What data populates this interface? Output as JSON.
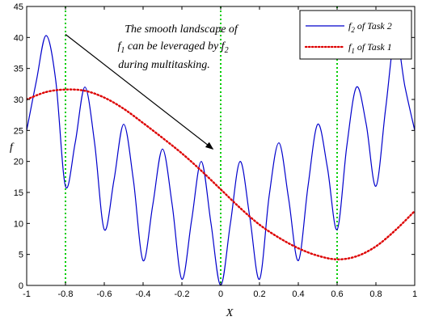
{
  "chart_data": {
    "type": "line",
    "title": "",
    "xlabel": "X",
    "ylabel": "f",
    "xlim": [
      -1,
      1
    ],
    "ylim": [
      0,
      45
    ],
    "xticks": [
      -1,
      -0.8,
      -0.6,
      -0.4,
      -0.2,
      0,
      0.2,
      0.4,
      0.6,
      0.8,
      1
    ],
    "xtick_labels": [
      "-1",
      "-0.8",
      "-0.6",
      "-0.4",
      "-0.2",
      "0",
      "0.2",
      "0.4",
      "0.6",
      "0.8",
      "1"
    ],
    "yticks": [
      0,
      5,
      10,
      15,
      20,
      25,
      30,
      35,
      40,
      45
    ],
    "ytick_labels": [
      "0",
      "5",
      "10",
      "15",
      "20",
      "25",
      "30",
      "35",
      "40",
      "45"
    ],
    "grid": false,
    "legend_position": "top-right",
    "series": [
      {
        "name_main": "f",
        "name_sub": "2",
        "name_rest": " of Task 2",
        "color": "#0000cc",
        "style": "solid",
        "x": [
          -1,
          -0.95,
          -0.9,
          -0.85,
          -0.8,
          -0.75,
          -0.7,
          -0.65,
          -0.6,
          -0.55,
          -0.5,
          -0.45,
          -0.4,
          -0.35,
          -0.3,
          -0.25,
          -0.2,
          -0.15,
          -0.1,
          -0.05,
          0,
          0.05,
          0.1,
          0.15,
          0.2,
          0.25,
          0.3,
          0.35,
          0.4,
          0.45,
          0.5,
          0.55,
          0.6,
          0.65,
          0.7,
          0.75,
          0.8,
          0.85,
          0.9,
          0.95,
          1
        ],
        "y": [
          25,
          33,
          40.3,
          33,
          16,
          23,
          32,
          23,
          9,
          17,
          26,
          17,
          4,
          13,
          22,
          13,
          1,
          10.5,
          20,
          10,
          0,
          10,
          20,
          11,
          1,
          14.5,
          23,
          14,
          4,
          16,
          26,
          19,
          9,
          22.5,
          32,
          26,
          16,
          28.5,
          40.3,
          32,
          25
        ]
      },
      {
        "name_main": "f",
        "name_sub": "1",
        "name_rest": " of Task 1",
        "color": "#dd0000",
        "style": "dotted",
        "x": [
          -1,
          -0.9,
          -0.8,
          -0.7,
          -0.6,
          -0.5,
          -0.4,
          -0.3,
          -0.2,
          -0.1,
          0,
          0.1,
          0.2,
          0.3,
          0.4,
          0.5,
          0.6,
          0.7,
          0.8,
          0.9,
          1
        ],
        "y": [
          30,
          31.2,
          31.6,
          31.4,
          30.3,
          28.5,
          26.2,
          23.8,
          21.3,
          18.5,
          15.5,
          12.5,
          9.8,
          7.7,
          6,
          4.8,
          4.2,
          4.7,
          6.3,
          8.9,
          12
        ]
      }
    ],
    "vlines": {
      "x": [
        -0.8,
        0,
        0.6
      ],
      "color": "#00cc00",
      "style": "dotted"
    },
    "annotation": {
      "line1": "The smooth landscape of",
      "line2_main": "f",
      "line2_sub": "1",
      "line2_mid": " can be leveraged by ",
      "line2_main2": "f",
      "line2_sub2": "2",
      "line3": "during multitasking.",
      "arrow_from": [
        -0.8,
        40.5
      ],
      "arrow_to": [
        -0.04,
        22
      ]
    }
  }
}
